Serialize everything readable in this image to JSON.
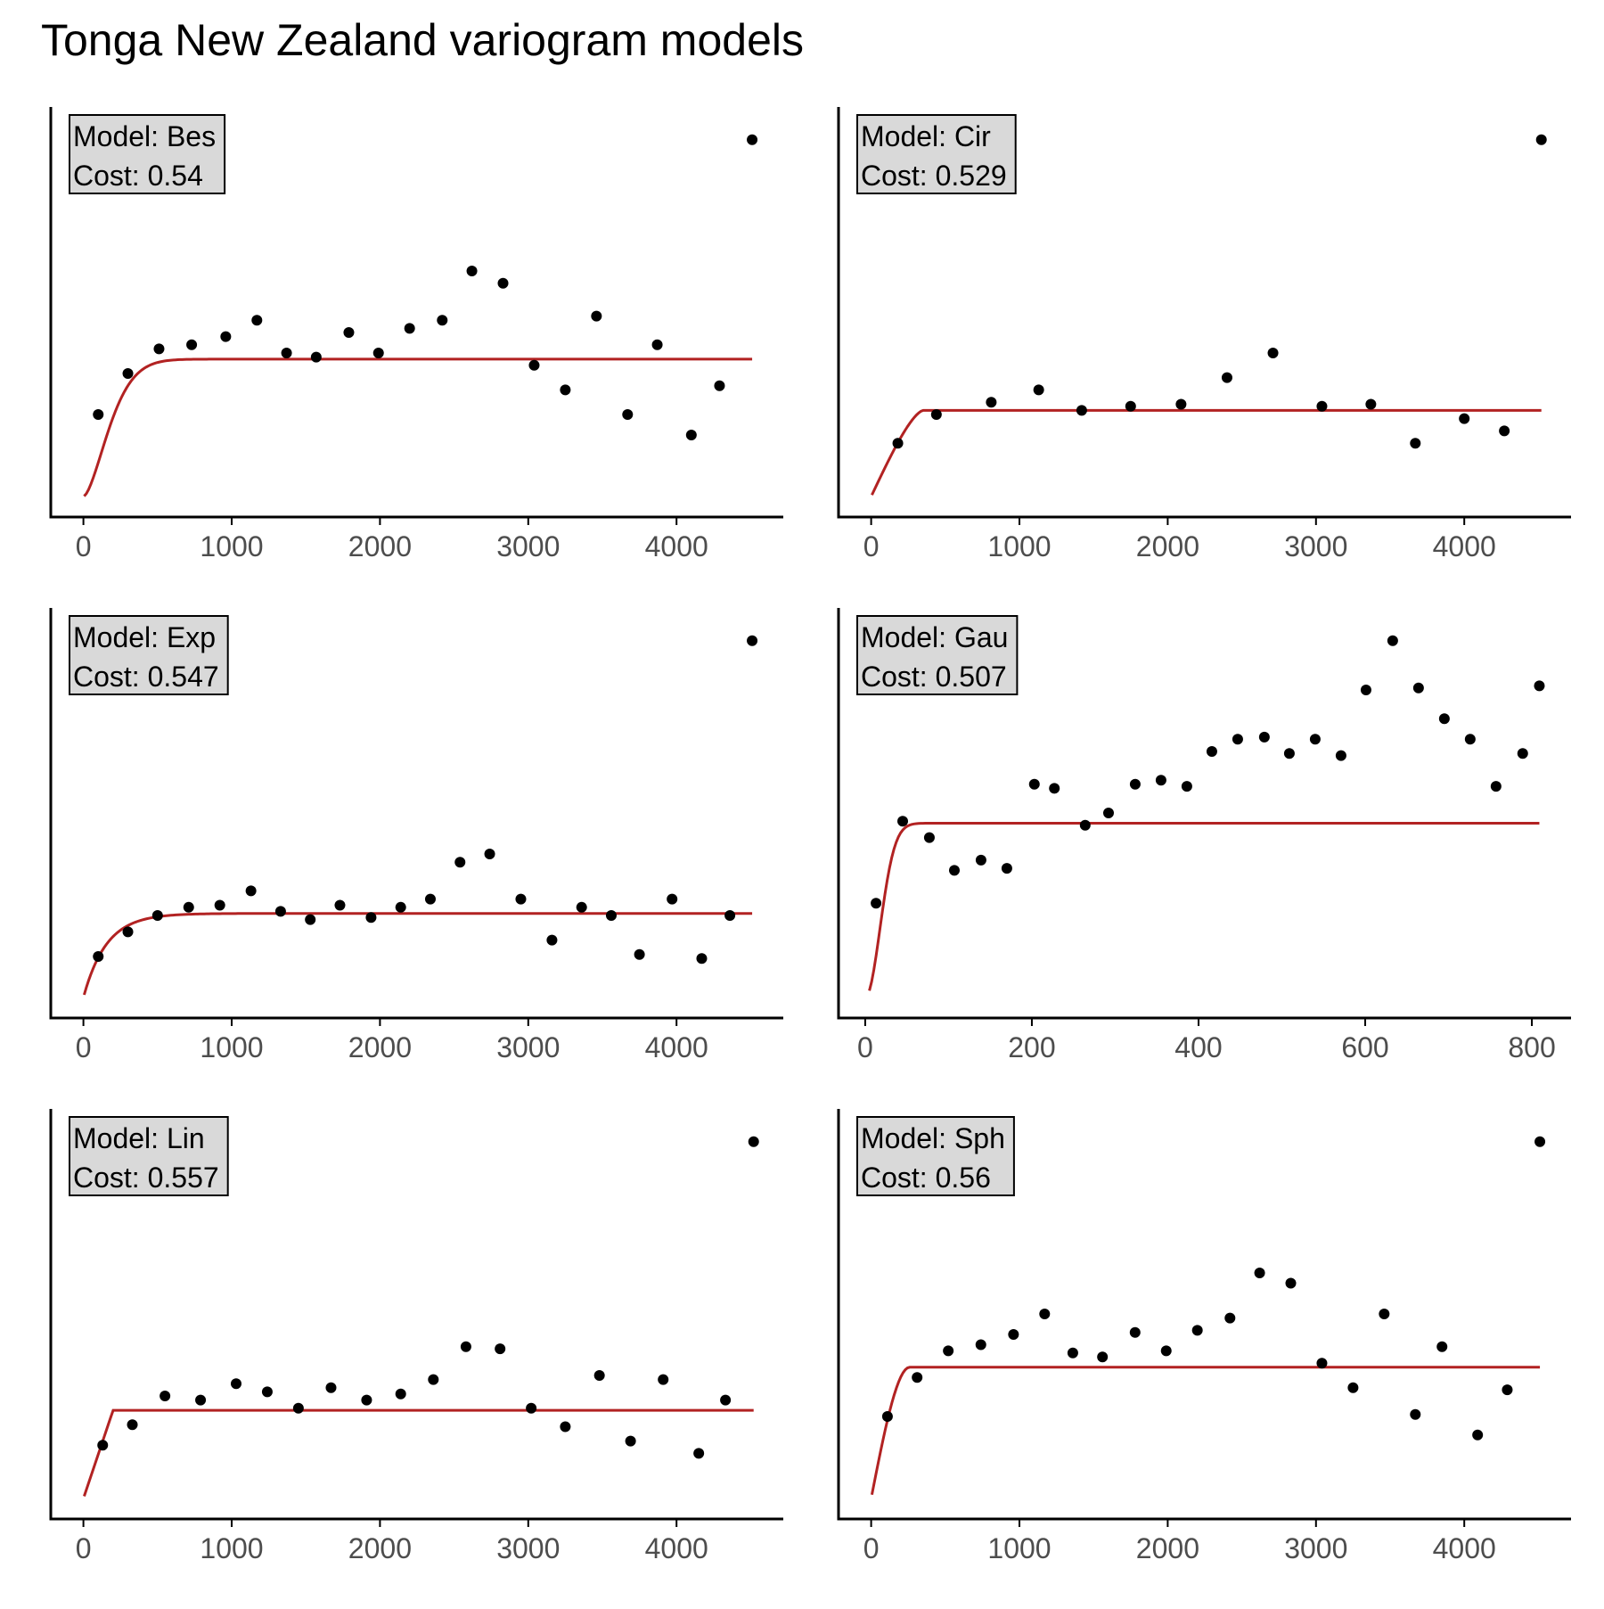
{
  "title": "Tonga New Zealand variogram models",
  "colors": {
    "model_line": "#b22222",
    "points": "#000000",
    "label_fill": "#d9d9d9",
    "axis": "#000000",
    "tick_text": "#4d4d4d"
  },
  "chart_data": [
    {
      "type": "scatter",
      "label": {
        "model": "Model: Bes",
        "cost": "Cost: 0.54"
      },
      "xlim": [
        -220,
        4720
      ],
      "xticks": [
        0,
        1000,
        2000,
        3000,
        4000
      ],
      "ylim": [
        0,
        100
      ],
      "grid": false,
      "points": [
        [
          100,
          25
        ],
        [
          300,
          35
        ],
        [
          510,
          41
        ],
        [
          730,
          42
        ],
        [
          960,
          44
        ],
        [
          1170,
          48
        ],
        [
          1370,
          40
        ],
        [
          1570,
          39
        ],
        [
          1790,
          45
        ],
        [
          1990,
          40
        ],
        [
          2200,
          46
        ],
        [
          2420,
          48
        ],
        [
          2620,
          60
        ],
        [
          2830,
          57
        ],
        [
          3040,
          37
        ],
        [
          3250,
          31
        ],
        [
          3460,
          49
        ],
        [
          3670,
          25
        ],
        [
          3870,
          42
        ],
        [
          4100,
          20
        ],
        [
          4290,
          32
        ],
        [
          4510,
          92
        ]
      ],
      "model": {
        "nugget": 5,
        "sill": 38.5,
        "range": 220,
        "shape": "bes",
        "xmax": 4510
      }
    },
    {
      "type": "scatter",
      "label": {
        "model": "Model: Cir",
        "cost": "Cost: 0.529"
      },
      "xlim": [
        -220,
        4720
      ],
      "xticks": [
        0,
        1000,
        2000,
        3000,
        4000
      ],
      "ylim": [
        0,
        100
      ],
      "grid": false,
      "points": [
        [
          180,
          18
        ],
        [
          440,
          25
        ],
        [
          810,
          28
        ],
        [
          1130,
          31
        ],
        [
          1420,
          26
        ],
        [
          1750,
          27
        ],
        [
          2090,
          27.5
        ],
        [
          2400,
          34
        ],
        [
          2710,
          40
        ],
        [
          3040,
          27
        ],
        [
          3370,
          27.5
        ],
        [
          3670,
          18
        ],
        [
          4000,
          24
        ],
        [
          4270,
          21
        ],
        [
          4520,
          92
        ]
      ],
      "model": {
        "nugget": 5,
        "sill": 26,
        "range": 350,
        "shape": "cir",
        "xmax": 4520
      }
    },
    {
      "type": "scatter",
      "label": {
        "model": "Model: Exp",
        "cost": "Cost: 0.547"
      },
      "xlim": [
        -220,
        4720
      ],
      "xticks": [
        0,
        1000,
        2000,
        3000,
        4000
      ],
      "ylim": [
        0,
        100
      ],
      "grid": false,
      "points": [
        [
          100,
          15
        ],
        [
          300,
          21
        ],
        [
          500,
          25
        ],
        [
          710,
          27
        ],
        [
          920,
          27.5
        ],
        [
          1130,
          31
        ],
        [
          1330,
          26
        ],
        [
          1530,
          24
        ],
        [
          1730,
          27.5
        ],
        [
          1940,
          24.5
        ],
        [
          2140,
          27
        ],
        [
          2340,
          29
        ],
        [
          2540,
          38
        ],
        [
          2740,
          40
        ],
        [
          2950,
          29
        ],
        [
          3160,
          19
        ],
        [
          3360,
          27
        ],
        [
          3560,
          25
        ],
        [
          3750,
          15.5
        ],
        [
          3970,
          29
        ],
        [
          4170,
          14.5
        ],
        [
          4360,
          25
        ],
        [
          4510,
          92
        ]
      ],
      "model": {
        "nugget": 5,
        "sill": 25.5,
        "range": 155,
        "shape": "exp",
        "xmax": 4510
      }
    },
    {
      "type": "scatter",
      "label": {
        "model": "Model: Gau",
        "cost": "Cost: 0.507"
      },
      "xlim": [
        -32,
        847
      ],
      "xticks": [
        0,
        200,
        400,
        600,
        800
      ],
      "ylim": [
        0,
        100
      ],
      "grid": false,
      "points": [
        [
          13,
          28
        ],
        [
          45,
          48
        ],
        [
          77,
          44
        ],
        [
          107,
          36
        ],
        [
          139,
          38.5
        ],
        [
          170,
          36.5
        ],
        [
          203,
          57
        ],
        [
          227,
          56
        ],
        [
          264,
          47
        ],
        [
          292,
          50
        ],
        [
          324,
          57
        ],
        [
          355,
          58
        ],
        [
          386,
          56.5
        ],
        [
          416,
          65
        ],
        [
          447,
          68
        ],
        [
          479,
          68.5
        ],
        [
          509,
          64.5
        ],
        [
          540,
          68
        ],
        [
          571,
          64
        ],
        [
          601,
          80
        ],
        [
          633,
          92
        ],
        [
          664,
          80.5
        ],
        [
          695,
          73
        ],
        [
          726,
          68
        ],
        [
          757,
          56.5
        ],
        [
          789,
          64.5
        ],
        [
          809,
          81
        ]
      ],
      "model": {
        "nugget": 5,
        "sill": 47.5,
        "range": 25,
        "shape": "gau",
        "xmax": 809
      }
    },
    {
      "type": "scatter",
      "label": {
        "model": "Model: Lin",
        "cost": "Cost: 0.557"
      },
      "xlim": [
        -220,
        4720
      ],
      "xticks": [
        0,
        1000,
        2000,
        3000,
        4000
      ],
      "ylim": [
        0,
        100
      ],
      "grid": false,
      "points": [
        [
          130,
          18
        ],
        [
          330,
          23
        ],
        [
          550,
          30
        ],
        [
          790,
          29
        ],
        [
          1030,
          33
        ],
        [
          1240,
          31
        ],
        [
          1450,
          27
        ],
        [
          1670,
          32
        ],
        [
          1910,
          29
        ],
        [
          2140,
          30.5
        ],
        [
          2360,
          34
        ],
        [
          2580,
          42
        ],
        [
          2810,
          41.5
        ],
        [
          3020,
          27
        ],
        [
          3250,
          22.5
        ],
        [
          3480,
          35
        ],
        [
          3690,
          19
        ],
        [
          3910,
          34
        ],
        [
          4150,
          16
        ],
        [
          4330,
          29
        ],
        [
          4520,
          92
        ]
      ],
      "model": {
        "nugget": 5,
        "sill": 26.5,
        "range": 200,
        "shape": "lin",
        "xmax": 4520
      }
    },
    {
      "type": "scatter",
      "label": {
        "model": "Model: Sph",
        "cost": "Cost: 0.56"
      },
      "xlim": [
        -220,
        4720
      ],
      "xticks": [
        0,
        1000,
        2000,
        3000,
        4000
      ],
      "ylim": [
        0,
        100
      ],
      "grid": false,
      "points": [
        [
          110,
          25
        ],
        [
          310,
          34.5
        ],
        [
          520,
          41
        ],
        [
          740,
          42.5
        ],
        [
          960,
          45
        ],
        [
          1170,
          50
        ],
        [
          1360,
          40.5
        ],
        [
          1560,
          39.5
        ],
        [
          1780,
          45.5
        ],
        [
          1990,
          41
        ],
        [
          2200,
          46
        ],
        [
          2420,
          49
        ],
        [
          2620,
          60
        ],
        [
          2830,
          57.5
        ],
        [
          3040,
          38
        ],
        [
          3250,
          32
        ],
        [
          3460,
          50
        ],
        [
          3670,
          25.5
        ],
        [
          3850,
          42
        ],
        [
          4090,
          20.5
        ],
        [
          4290,
          31.5
        ],
        [
          4510,
          92
        ]
      ],
      "model": {
        "nugget": 5,
        "sill": 37,
        "range": 260,
        "shape": "sph",
        "xmax": 4510
      }
    }
  ]
}
